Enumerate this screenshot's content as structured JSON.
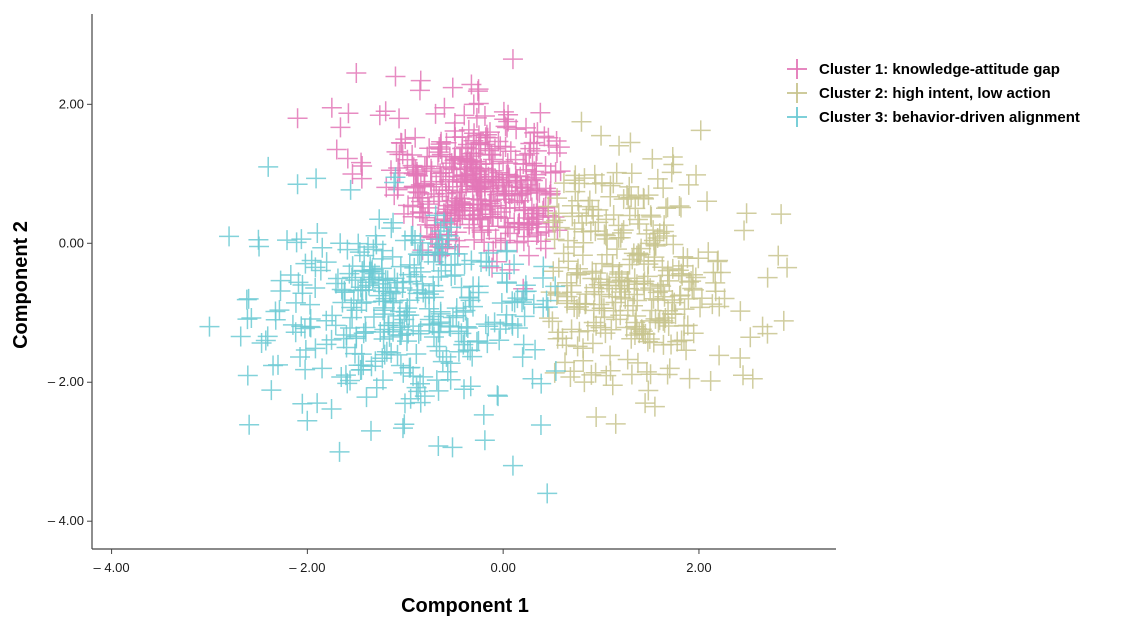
{
  "chart_data": {
    "type": "scatter",
    "xlabel": "Component 1",
    "ylabel": "Component 2",
    "xlim": [
      -4.2,
      3.4
    ],
    "ylim": [
      -4.4,
      3.3
    ],
    "x_ticks": [
      -4.0,
      -2.0,
      0.0,
      2.0
    ],
    "y_ticks": [
      -4.0,
      -2.0,
      0.0,
      2.0
    ],
    "x_tick_labels": [
      "– 4.00",
      "– 2.00",
      "0.00",
      "2.00"
    ],
    "y_tick_labels": [
      "– 4.00",
      "– 2.00",
      "0.00",
      "2.00"
    ],
    "grid": false,
    "legend_position": "top-right",
    "series": [
      {
        "name": "Cluster 1: knowledge-attitude gap",
        "color": "#e377b7",
        "points_generated": true,
        "n": 420,
        "region": {
          "x_min": -1.9,
          "x_max": 0.7,
          "y_min": -0.9,
          "y_max": 2.6
        },
        "x": [
          -2.1,
          -1.5,
          -1.1,
          -0.85,
          0.1,
          -1.7,
          -1.75,
          -1.2,
          -0.6,
          -0.3,
          0.05,
          0.35,
          0.55,
          -1.0,
          -0.8,
          0.3
        ],
        "y": [
          1.8,
          2.45,
          2.4,
          2.2,
          2.65,
          1.35,
          1.95,
          1.9,
          1.95,
          2.0,
          1.85,
          1.6,
          1.3,
          1.5,
          1.1,
          1.15
        ]
      },
      {
        "name": "Cluster 2: high intent, low action",
        "color": "#c8c48e",
        "points_generated": true,
        "n": 320,
        "region": {
          "x_min": 0.3,
          "x_max": 3.0,
          "y_min": -2.7,
          "y_max": 1.9
        },
        "x": [
          2.9,
          2.55,
          2.45,
          2.65,
          2.7,
          1.15,
          0.95,
          1.55,
          1.45,
          0.8,
          1.0,
          1.3
        ],
        "y": [
          -0.35,
          -1.95,
          -1.9,
          -1.2,
          -1.3,
          -2.6,
          -2.5,
          -2.35,
          -2.3,
          1.75,
          1.55,
          1.45
        ]
      },
      {
        "name": "Cluster 3: behavior-driven alignment",
        "color": "#6ccad4",
        "points_generated": true,
        "n": 360,
        "region": {
          "x_min": -3.1,
          "x_max": 0.6,
          "y_min": -3.7,
          "y_max": 1.2
        },
        "x": [
          -3.0,
          -2.8,
          -2.4,
          -2.1,
          -1.9,
          -1.35,
          0.1,
          0.45,
          -1.85,
          -0.8,
          -2.6,
          -2.3,
          -1.6,
          -0.4,
          0.3,
          -1.1,
          -2.05,
          -2.5
        ],
        "y": [
          -1.2,
          0.1,
          1.1,
          0.85,
          -2.3,
          -2.7,
          -3.2,
          -3.6,
          -1.8,
          -2.2,
          -0.8,
          -1.75,
          -1.5,
          -2.1,
          -1.95,
          0.95,
          -0.6,
          0.05
        ]
      }
    ]
  }
}
